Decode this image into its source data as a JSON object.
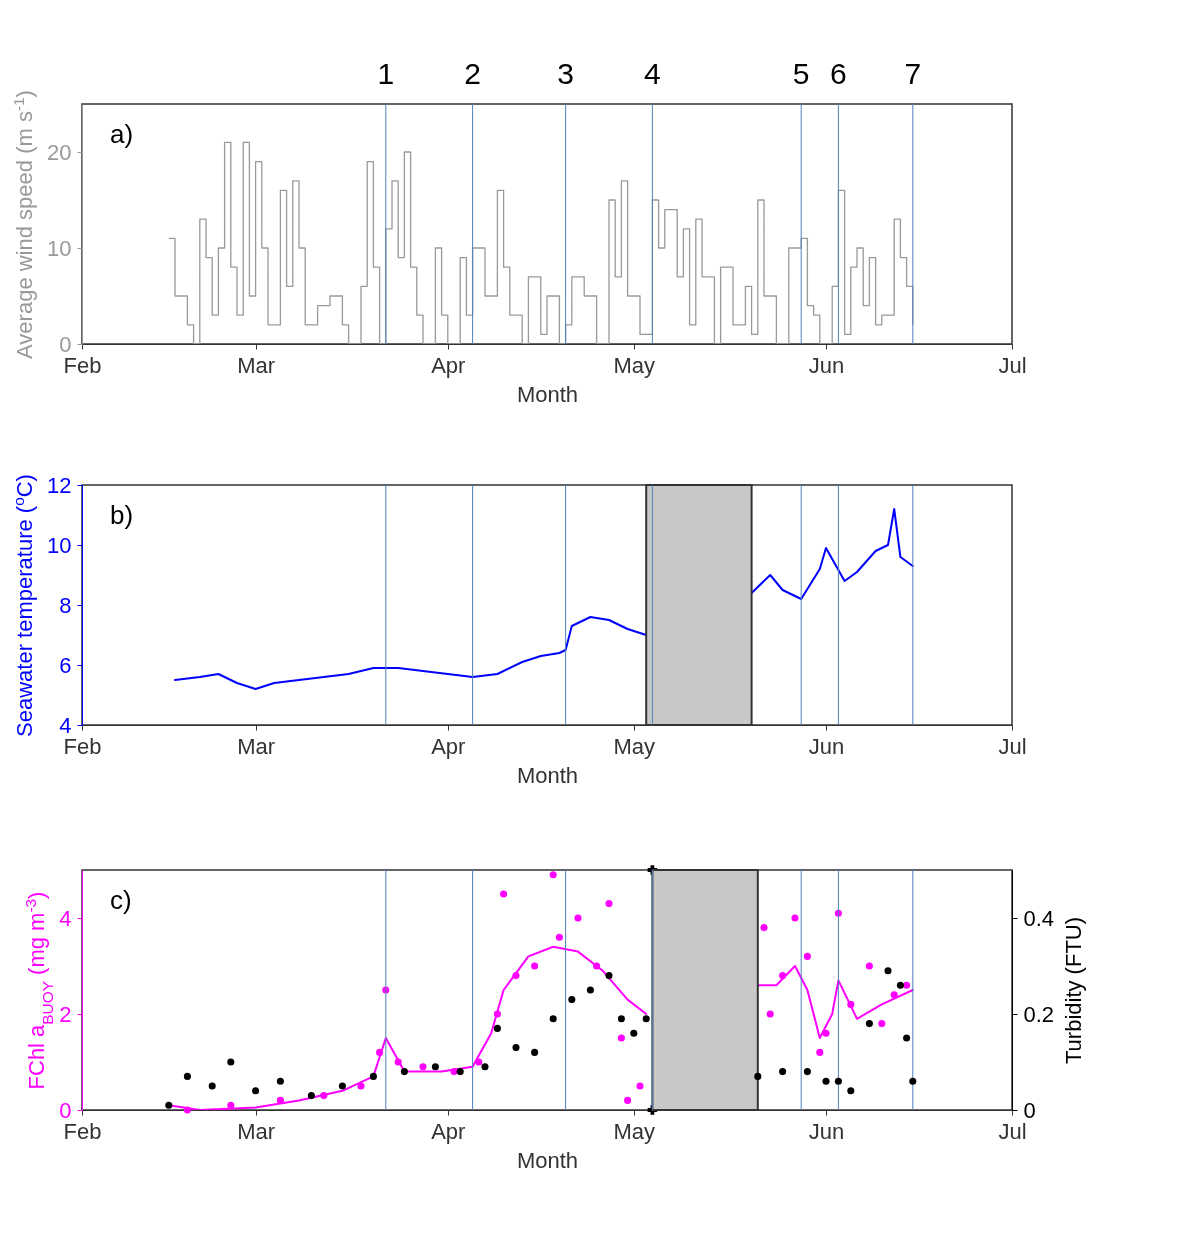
{
  "chart_data": [
    {
      "type": "step",
      "xlabel": "Month",
      "ylabel": "Average wind speed (m s$^{-1}$)",
      "annotations": [
        "a)"
      ],
      "xlim": [
        "--02-01",
        "--07-01"
      ],
      "xticks": [
        {
          "value": "--02-01",
          "label": "Feb"
        },
        {
          "value": "--03-01",
          "label": "Mar"
        },
        {
          "value": "--04-01",
          "label": "Apr"
        },
        {
          "value": "--05-01",
          "label": "May"
        },
        {
          "value": "--06-01",
          "label": "Jun"
        },
        {
          "value": "--07-01",
          "label": "Jul"
        }
      ],
      "ylim": [
        0,
        25
      ],
      "yticks": [
        0,
        10,
        20
      ],
      "x": [
        "--02-15",
        "--02-16",
        "--02-18",
        "--02-19",
        "--02-20",
        "--02-21",
        "--02-22",
        "--02-23",
        "--02-24",
        "--02-25",
        "--02-26",
        "--02-27",
        "--02-28",
        "--03-01",
        "--03-02",
        "--03-03",
        "--03-05",
        "--03-06",
        "--03-07",
        "--03-08",
        "--03-09",
        "--03-11",
        "--03-13",
        "--03-15",
        "--03-16",
        "--03-18",
        "--03-19",
        "--03-20",
        "--03-21",
        "--03-22",
        "--03-23",
        "--03-24",
        "--03-25",
        "--03-26",
        "--03-27",
        "--03-28",
        "--03-30",
        "--03-31",
        "--04-01",
        "--04-03",
        "--04-04",
        "--04-05",
        "--04-07",
        "--04-09",
        "--04-10",
        "--04-11",
        "--04-13",
        "--04-14",
        "--04-16",
        "--04-17",
        "--04-19",
        "--04-20",
        "--04-21",
        "--04-23",
        "--04-25",
        "--04-27",
        "--04-28",
        "--04-29",
        "--04-30",
        "--05-02",
        "--05-04",
        "--05-05",
        "--05-06",
        "--05-08",
        "--05-09",
        "--05-10",
        "--05-11",
        "--05-12",
        "--05-14",
        "--05-15",
        "--05-17",
        "--05-19",
        "--05-20",
        "--05-21",
        "--05-22",
        "--05-24",
        "--05-26",
        "--05-28",
        "--05-29",
        "--05-30",
        "--05-31",
        "--06-02",
        "--06-03",
        "--06-04",
        "--06-05",
        "--06-06",
        "--06-07",
        "--06-08",
        "--06-09",
        "--06-10",
        "--06-12",
        "--06-13",
        "--06-14",
        "--06-15"
      ],
      "series": [
        {
          "color": "#999999",
          "values": [
            11,
            5,
            2,
            0,
            13,
            9,
            3,
            10,
            21,
            8,
            3,
            21,
            5,
            19,
            10,
            2,
            16,
            6,
            17,
            10,
            2,
            4,
            5,
            2,
            0,
            6,
            19,
            8,
            0,
            12,
            17,
            9,
            20,
            8,
            3,
            0,
            10,
            3,
            0,
            9,
            3,
            10,
            5,
            16,
            8,
            3,
            0,
            7,
            1,
            5,
            0,
            2,
            7,
            5,
            0,
            15,
            7,
            17,
            5,
            1,
            15,
            10,
            14,
            7,
            12,
            2,
            13,
            7,
            0,
            8,
            2,
            6,
            1,
            15,
            5,
            0,
            10,
            11,
            4,
            3,
            0,
            6,
            16,
            1,
            8,
            10,
            4,
            9,
            2,
            3,
            13,
            9,
            6,
            2
          ]
        }
      ],
      "ref_lines": [
        {
          "axis": "x",
          "value": "--03-22",
          "label": "1",
          "color": "#4f81bd"
        },
        {
          "axis": "x",
          "value": "--04-05",
          "label": "2",
          "color": "#4f81bd"
        },
        {
          "axis": "x",
          "value": "--04-20",
          "label": "3",
          "color": "#4f81bd"
        },
        {
          "axis": "x",
          "value": "--05-04",
          "label": "4",
          "color": "#4f81bd"
        },
        {
          "axis": "x",
          "value": "--05-28",
          "label": "5",
          "color": "#4f81bd"
        },
        {
          "axis": "x",
          "value": "--06-03",
          "label": "6",
          "color": "#4f81bd"
        },
        {
          "axis": "x",
          "value": "--06-15",
          "label": "7",
          "color": "#4f81bd"
        }
      ]
    },
    {
      "type": "line",
      "xlabel": "Month",
      "ylabel": "Seawater temperature ($^{o}$C)",
      "annotations": [
        "b)"
      ],
      "xlim": [
        "--02-01",
        "--07-01"
      ],
      "xticks": [
        {
          "value": "--02-01",
          "label": "Feb"
        },
        {
          "value": "--03-01",
          "label": "Mar"
        },
        {
          "value": "--04-01",
          "label": "Apr"
        },
        {
          "value": "--05-01",
          "label": "May"
        },
        {
          "value": "--06-01",
          "label": "Jun"
        },
        {
          "value": "--07-01",
          "label": "Jul"
        }
      ],
      "ylim": [
        4,
        12
      ],
      "yticks": [
        4,
        6,
        8,
        10,
        12
      ],
      "x": [
        "--02-16",
        "--02-20",
        "--02-23",
        "--02-26",
        "--03-01",
        "--03-04",
        "--03-08",
        "--03-12",
        "--03-16",
        "--03-20",
        "--03-24",
        "--03-28",
        "--04-01",
        "--04-05",
        "--04-09",
        "--04-13",
        "--04-16",
        "--04-19",
        "--04-20",
        "--04-21",
        "--04-24",
        "--04-27",
        "--04-30",
        "--05-03",
        "--05-10",
        "--05-20",
        "--05-23",
        "--05-25",
        "--05-28",
        "--05-31",
        "--06-01",
        "--06-04",
        "--06-06",
        "--06-09",
        "--06-11",
        "--06-12",
        "--06-13",
        "--06-15"
      ],
      "series": [
        {
          "color": "#0000ff",
          "values": [
            5.5,
            5.6,
            5.7,
            5.4,
            5.2,
            5.4,
            5.5,
            5.6,
            5.7,
            5.9,
            5.9,
            5.8,
            5.7,
            5.6,
            5.7,
            6.1,
            6.3,
            6.4,
            6.5,
            7.3,
            7.6,
            7.5,
            7.2,
            7.0,
            null,
            8.4,
            9.0,
            8.5,
            8.2,
            9.2,
            9.9,
            8.8,
            9.1,
            9.8,
            10.0,
            11.2,
            9.6,
            9.3
          ]
        }
      ],
      "bands": [
        {
          "axis": "x",
          "from": "--05-03",
          "to": "--05-20",
          "color": "#c8c8c8"
        }
      ],
      "ref_lines": [
        {
          "axis": "x",
          "value": "--03-22",
          "color": "#4f81bd"
        },
        {
          "axis": "x",
          "value": "--04-05",
          "color": "#4f81bd"
        },
        {
          "axis": "x",
          "value": "--04-20",
          "color": "#4f81bd"
        },
        {
          "axis": "x",
          "value": "--05-04",
          "color": "#4f81bd"
        },
        {
          "axis": "x",
          "value": "--05-28",
          "color": "#4f81bd"
        },
        {
          "axis": "x",
          "value": "--06-03",
          "color": "#4f81bd"
        },
        {
          "axis": "x",
          "value": "--06-15",
          "color": "#4f81bd"
        }
      ]
    },
    {
      "type": "scatter",
      "xlabel": "Month",
      "ylabel": "FChl a$_{BUOY}$ (mg m$^{-3}$)",
      "y2label": "Turbidity (FTU)",
      "annotations": [
        "c)"
      ],
      "xlim": [
        "--02-01",
        "--07-01"
      ],
      "xticks": [
        {
          "value": "--02-01",
          "label": "Feb"
        },
        {
          "value": "--03-01",
          "label": "Mar"
        },
        {
          "value": "--04-01",
          "label": "Apr"
        },
        {
          "value": "--05-01",
          "label": "May"
        },
        {
          "value": "--06-01",
          "label": "Jun"
        },
        {
          "value": "--07-01",
          "label": "Jul"
        }
      ],
      "ylim": [
        0,
        5
      ],
      "yticks": [
        0,
        2,
        4
      ],
      "y2lim": [
        0,
        0.5
      ],
      "y2ticks": [
        0,
        0.2,
        0.4
      ],
      "series": [
        {
          "marker": "circle",
          "color": "#ff00ff",
          "x": [
            "--02-18",
            "--02-25",
            "--03-05",
            "--03-12",
            "--03-18",
            "--03-21",
            "--03-22",
            "--03-24",
            "--03-28",
            "--04-02",
            "--04-06",
            "--04-09",
            "--04-10",
            "--04-12",
            "--04-15",
            "--04-18",
            "--04-19",
            "--04-22",
            "--04-25",
            "--04-27",
            "--04-29",
            "--04-30",
            "--05-02",
            "--05-22",
            "--05-23",
            "--05-25",
            "--05-27",
            "--05-29",
            "--05-31",
            "--06-01",
            "--06-03",
            "--06-05",
            "--06-08",
            "--06-10",
            "--06-12",
            "--06-14"
          ],
          "values": [
            0.0,
            0.1,
            0.2,
            0.3,
            0.5,
            1.2,
            2.5,
            1.0,
            0.9,
            0.8,
            1.0,
            2.0,
            4.5,
            2.8,
            3.0,
            4.9,
            3.6,
            4.0,
            3.0,
            4.3,
            1.5,
            0.2,
            0.5,
            3.8,
            2.0,
            2.8,
            4.0,
            3.2,
            1.2,
            1.6,
            4.1,
            2.2,
            3.0,
            1.8,
            2.4,
            2.6
          ]
        },
        {
          "type": "line",
          "color": "#ff00ff",
          "x": [
            "--02-15",
            "--02-20",
            "--03-01",
            "--03-08",
            "--03-15",
            "--03-20",
            "--03-22",
            "--03-25",
            "--03-31",
            "--04-05",
            "--04-08",
            "--04-10",
            "--04-14",
            "--04-18",
            "--04-22",
            "--04-26",
            "--04-30",
            "--05-03",
            "--05-10",
            "--05-21",
            "--05-24",
            "--05-27",
            "--05-29",
            "--05-31",
            "--06-02",
            "--06-03",
            "--06-06",
            "--06-10",
            "--06-15"
          ],
          "values": [
            0.1,
            0.0,
            0.05,
            0.2,
            0.4,
            0.7,
            1.5,
            0.8,
            0.8,
            0.9,
            1.6,
            2.5,
            3.2,
            3.4,
            3.3,
            2.9,
            2.3,
            2.0,
            null,
            2.6,
            2.6,
            3.0,
            2.5,
            1.5,
            2.0,
            2.7,
            1.9,
            2.2,
            2.5
          ]
        },
        {
          "marker": "circle",
          "axis": "y2",
          "color": "#000000",
          "x": [
            "--02-15",
            "--02-18",
            "--02-22",
            "--02-25",
            "--03-01",
            "--03-05",
            "--03-10",
            "--03-15",
            "--03-20",
            "--03-25",
            "--03-30",
            "--04-03",
            "--04-07",
            "--04-09",
            "--04-12",
            "--04-15",
            "--04-18",
            "--04-21",
            "--04-24",
            "--04-27",
            "--04-29",
            "--05-01",
            "--05-03",
            "--05-21",
            "--05-25",
            "--05-29",
            "--06-01",
            "--06-03",
            "--06-05",
            "--06-08",
            "--06-11",
            "--06-13",
            "--06-14",
            "--06-15"
          ],
          "values": [
            0.01,
            0.07,
            0.05,
            0.1,
            0.04,
            0.06,
            0.03,
            0.05,
            0.07,
            0.08,
            0.09,
            0.08,
            0.09,
            0.17,
            0.13,
            0.12,
            0.19,
            0.23,
            0.25,
            0.28,
            0.19,
            0.16,
            0.19,
            0.07,
            0.08,
            0.08,
            0.06,
            0.06,
            0.04,
            0.18,
            0.29,
            0.26,
            0.15,
            0.06
          ]
        },
        {
          "marker": "cross",
          "color": "#000000",
          "x": [
            "--05-04",
            "--05-04"
          ],
          "values": [
            5,
            0
          ]
        }
      ],
      "bands": [
        {
          "axis": "x",
          "from": "--05-04",
          "to": "--05-21",
          "color": "#c8c8c8"
        }
      ],
      "ref_lines": [
        {
          "axis": "x",
          "value": "--03-22",
          "color": "#4f81bd"
        },
        {
          "axis": "x",
          "value": "--04-05",
          "color": "#4f81bd"
        },
        {
          "axis": "x",
          "value": "--04-20",
          "color": "#4f81bd"
        },
        {
          "axis": "x",
          "value": "--05-04",
          "color": "#4f81bd"
        },
        {
          "axis": "x",
          "value": "--05-28",
          "color": "#4f81bd"
        },
        {
          "axis": "x",
          "value": "--06-03",
          "color": "#4f81bd"
        },
        {
          "axis": "x",
          "value": "--06-15",
          "color": "#4f81bd"
        }
      ]
    }
  ]
}
